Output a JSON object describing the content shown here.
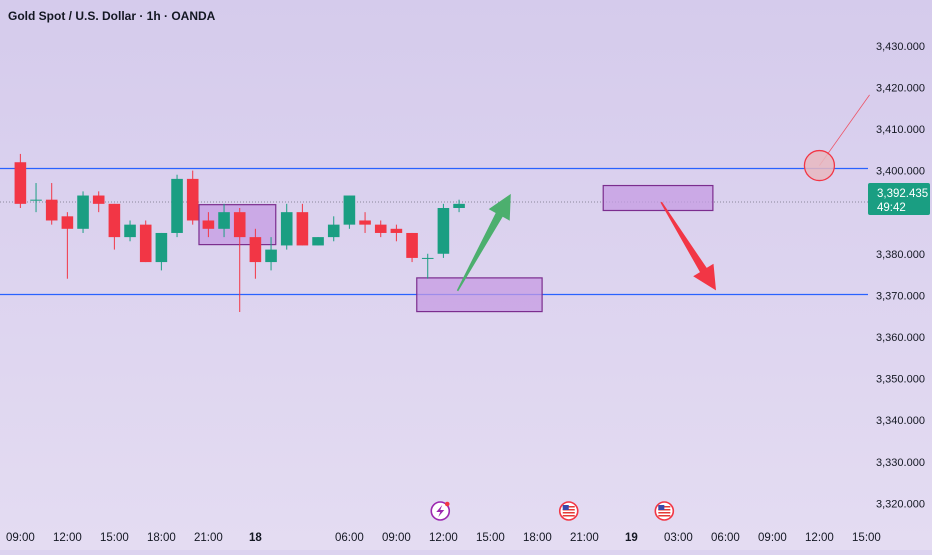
{
  "header": {
    "title": "Gold Spot / U.S. Dollar · 1h · OANDA"
  },
  "price_tag": {
    "price": "3,392.435",
    "countdown": "49:42"
  },
  "colors": {
    "background_top": "#d5cbec",
    "background_bottom": "#e4dcf2",
    "bull": "#1a9e82",
    "bear": "#f23645",
    "level_line": "#2962ff",
    "zone_fill": "#c59be3",
    "zone_border": "#7b2d8e",
    "arrow_up": "#4caf6e",
    "arrow_down": "#f23645",
    "price_tag": "#1a9e82",
    "circle_fill": "#e8b8c0",
    "circle_stroke": "#f23645"
  },
  "chart_data": {
    "type": "candlestick",
    "symbol": "Gold Spot / U.S. Dollar",
    "interval": "1h",
    "source": "OANDA",
    "y_axis": {
      "ticks": [
        "3,430.000",
        "3,420.000",
        "3,410.000",
        "3,400.000",
        "3,380.000",
        "3,370.000",
        "3,360.000",
        "3,350.000",
        "3,340.000",
        "3,330.000",
        "3,320.000"
      ],
      "tick_values": [
        3430,
        3420,
        3410,
        3400,
        3380,
        3370,
        3360,
        3350,
        3340,
        3330,
        3320
      ],
      "range": [
        3316,
        3441
      ]
    },
    "x_axis": {
      "labels": [
        "09:00",
        "12:00",
        "15:00",
        "18:00",
        "21:00",
        "18",
        "06:00",
        "09:00",
        "12:00",
        "15:00",
        "18:00",
        "21:00",
        "19",
        "03:00",
        "06:00",
        "09:00",
        "12:00",
        "15:00"
      ],
      "bold_labels": [
        "18",
        "19"
      ],
      "label_index": [
        0,
        3,
        6,
        9,
        12,
        15,
        21,
        24,
        27,
        30,
        33,
        36,
        39,
        42,
        45,
        48,
        51,
        54
      ],
      "range": [
        -1.3,
        54.1
      ]
    },
    "candles": [
      {
        "i": 0,
        "o": 3402,
        "h": 3404,
        "l": 3391,
        "c": 3392
      },
      {
        "i": 1,
        "o": 3393,
        "h": 3397,
        "l": 3390,
        "c": 3393
      },
      {
        "i": 2,
        "o": 3393,
        "h": 3397,
        "l": 3387,
        "c": 3388
      },
      {
        "i": 3,
        "o": 3389,
        "h": 3390,
        "l": 3374,
        "c": 3386
      },
      {
        "i": 4,
        "o": 3386,
        "h": 3395,
        "l": 3385,
        "c": 3394
      },
      {
        "i": 5,
        "o": 3394,
        "h": 3395,
        "l": 3390,
        "c": 3392
      },
      {
        "i": 6,
        "o": 3392,
        "h": 3392,
        "l": 3381,
        "c": 3384
      },
      {
        "i": 7,
        "o": 3384,
        "h": 3388,
        "l": 3383,
        "c": 3387
      },
      {
        "i": 8,
        "o": 3387,
        "h": 3388,
        "l": 3378,
        "c": 3378
      },
      {
        "i": 9,
        "o": 3378,
        "h": 3385,
        "l": 3376,
        "c": 3385
      },
      {
        "i": 10,
        "o": 3385,
        "h": 3399,
        "l": 3384,
        "c": 3398
      },
      {
        "i": 11,
        "o": 3398,
        "h": 3400,
        "l": 3387,
        "c": 3388
      },
      {
        "i": 12,
        "o": 3388,
        "h": 3390,
        "l": 3384,
        "c": 3386
      },
      {
        "i": 13,
        "o": 3386,
        "h": 3392,
        "l": 3384,
        "c": 3390
      },
      {
        "i": 14,
        "o": 3390,
        "h": 3391,
        "l": 3366,
        "c": 3384
      },
      {
        "i": 15,
        "o": 3384,
        "h": 3386,
        "l": 3374,
        "c": 3378
      },
      {
        "i": 16,
        "o": 3378,
        "h": 3384,
        "l": 3376,
        "c": 3381
      },
      {
        "i": 17,
        "o": 3382,
        "h": 3392,
        "l": 3381,
        "c": 3390
      },
      {
        "i": 18,
        "o": 3390,
        "h": 3392,
        "l": 3382,
        "c": 3382
      },
      {
        "i": 19,
        "o": 3382,
        "h": 3384,
        "l": 3382,
        "c": 3384
      },
      {
        "i": 20,
        "o": 3384,
        "h": 3389,
        "l": 3383,
        "c": 3387
      },
      {
        "i": 21,
        "o": 3387,
        "h": 3394,
        "l": 3386,
        "c": 3394
      },
      {
        "i": 22,
        "o": 3388,
        "h": 3390,
        "l": 3385,
        "c": 3387
      },
      {
        "i": 23,
        "o": 3387,
        "h": 3388,
        "l": 3384,
        "c": 3385
      },
      {
        "i": 24,
        "o": 3386,
        "h": 3387,
        "l": 3383,
        "c": 3385
      },
      {
        "i": 25,
        "o": 3385,
        "h": 3385,
        "l": 3378,
        "c": 3379
      },
      {
        "i": 26,
        "o": 3379,
        "h": 3380,
        "l": 3374,
        "c": 3379
      },
      {
        "i": 27,
        "o": 3380,
        "h": 3392,
        "l": 3379,
        "c": 3391
      },
      {
        "i": 28,
        "o": 3391,
        "h": 3393,
        "l": 3390,
        "c": 3392
      }
    ],
    "horizontal_levels": [
      {
        "price": 3400.5
      },
      {
        "price": 3370.2
      }
    ],
    "current_price": 3392.435,
    "zones": [
      {
        "x0": 11.4,
        "x1": 16.3,
        "top": 3391.8,
        "bottom": 3382.2
      },
      {
        "x0": 25.3,
        "x1": 33.3,
        "top": 3374.2,
        "bottom": 3366.1
      },
      {
        "x0": 37.2,
        "x1": 44.2,
        "top": 3396.4,
        "bottom": 3390.4
      }
    ],
    "arrows": [
      {
        "direction": "up",
        "from": [
          27.9,
          3371.1
        ],
        "to": [
          31.3,
          3394.4
        ]
      },
      {
        "direction": "down",
        "from": [
          40.9,
          3392.4
        ],
        "to": [
          44.4,
          3371.2
        ]
      }
    ],
    "marker_circle": {
      "x": 51.0,
      "y": 3401.2
    },
    "marker_line": {
      "from": [
        51.0,
        3401.2
      ],
      "to": [
        54.2,
        3418.2
      ]
    },
    "event_icons": [
      {
        "x": 26.8,
        "type": "bolt-event"
      },
      {
        "x": 35.0,
        "type": "us-flag-event"
      },
      {
        "x": 41.1,
        "type": "us-flag-event"
      }
    ]
  }
}
